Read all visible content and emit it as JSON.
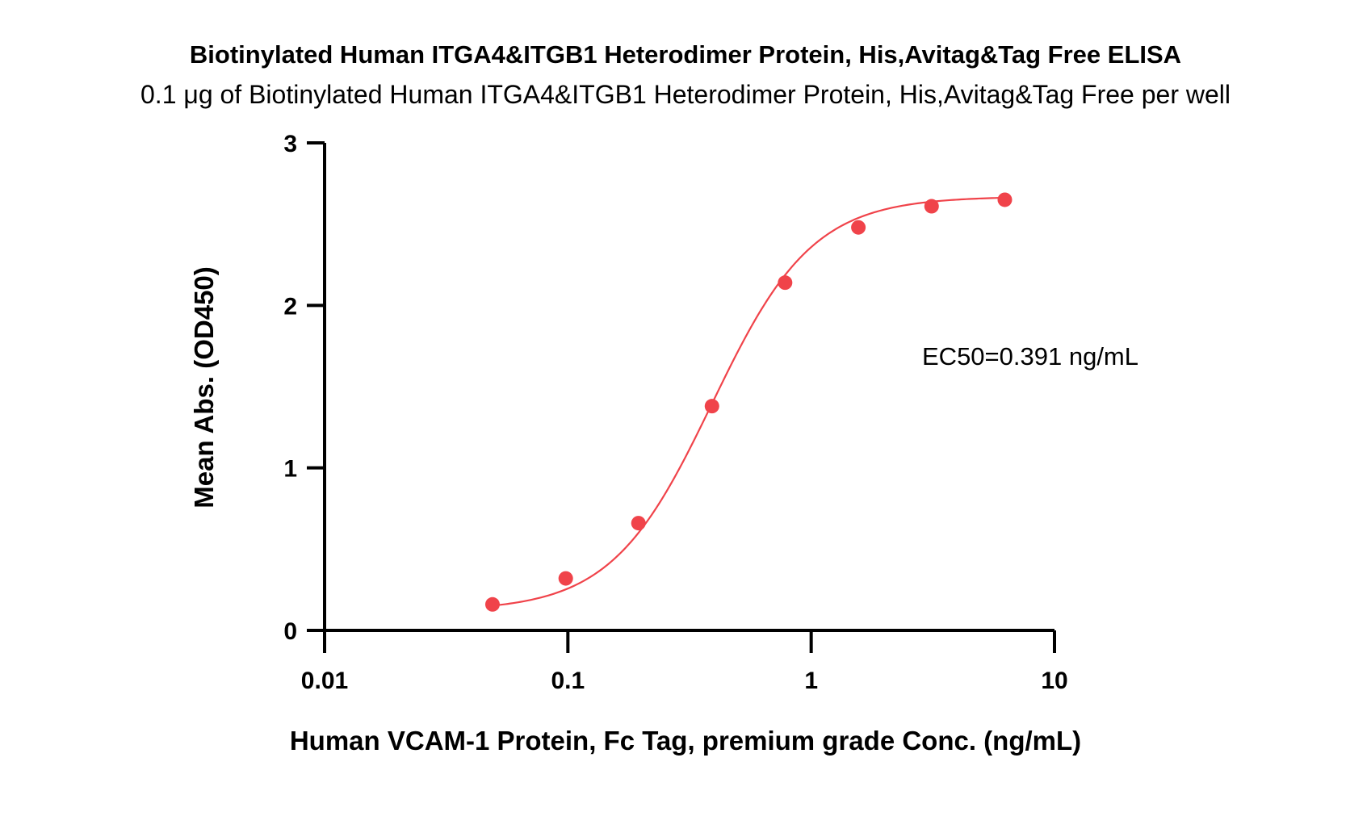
{
  "chart_data": {
    "type": "scatter",
    "title": "Biotinylated Human ITGA4&ITGB1 Heterodimer Protein, His,Avitag&Tag Free ELISA",
    "subtitle": "0.1 μg of Biotinylated Human ITGA4&ITGB1 Heterodimer Protein, His,Avitag&Tag Free per well",
    "xlabel": "Human VCAM-1 Protein, Fc Tag, premium grade Conc. (ng/mL)",
    "ylabel": "Mean Abs. (OD450)",
    "xscale": "log",
    "xlim": [
      0.01,
      10
    ],
    "ylim": [
      0,
      3
    ],
    "x_ticks": [
      0.01,
      0.1,
      1,
      10
    ],
    "x_tick_labels": [
      "0.01",
      "0.1",
      "1",
      "10"
    ],
    "y_ticks": [
      0,
      1,
      2,
      3
    ],
    "y_tick_labels": [
      "0",
      "1",
      "2",
      "3"
    ],
    "grid": false,
    "series": [
      {
        "color": "#f0434a",
        "x": [
          0.049,
          0.098,
          0.195,
          0.391,
          0.781,
          1.563,
          3.125,
          6.25
        ],
        "y": [
          0.16,
          0.32,
          0.66,
          1.38,
          2.14,
          2.48,
          2.61,
          2.65
        ],
        "fit": {
          "type": "4PL",
          "bottom": 0.12,
          "top": 2.67,
          "ec50": 0.391,
          "hill": 2.1
        }
      }
    ],
    "annotation": "EC50=0.391 ng/mL"
  }
}
